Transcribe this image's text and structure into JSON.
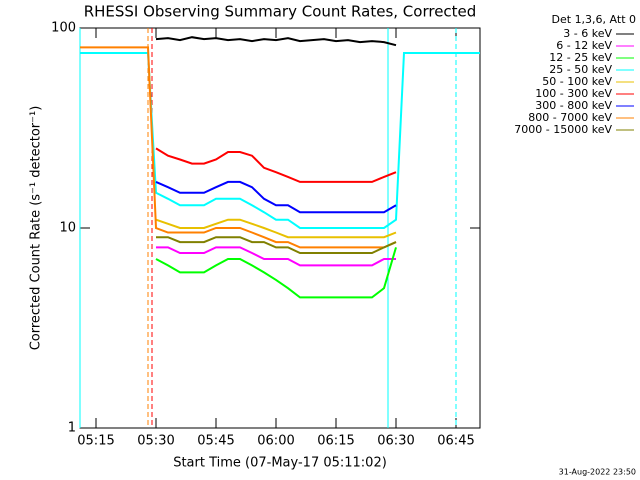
{
  "chart_data": {
    "type": "line",
    "title": "RHESSI Observing Summary Count Rates, Corrected",
    "xlabel": "Start Time (07-May-17 05:11:02)",
    "ylabel": "Corrected Count Rate (s⁻¹ detector⁻¹)",
    "legend_title": "Det 1,3,6, Att 0",
    "footer": "31-Aug-2022 23:50",
    "log_y": true,
    "ylim": [
      1,
      100
    ],
    "yticks": [
      1,
      10,
      100
    ],
    "xlim": [
      "05:11",
      "06:51"
    ],
    "xticks": [
      "05:15",
      "05:30",
      "05:45",
      "06:00",
      "06:15",
      "06:30",
      "06:45"
    ],
    "legend": "outside-right",
    "x": [
      "05:11",
      "05:28",
      "05:30",
      "05:33",
      "05:36",
      "05:39",
      "05:42",
      "05:45",
      "05:48",
      "05:51",
      "05:54",
      "05:57",
      "06:00",
      "06:03",
      "06:06",
      "06:09",
      "06:12",
      "06:15",
      "06:18",
      "06:21",
      "06:24",
      "06:27",
      "06:30",
      "06:32",
      "06:51"
    ],
    "series": [
      {
        "name": "3 - 6 keV",
        "color": "#000000",
        "values": [
          null,
          null,
          88,
          89,
          87,
          90,
          88,
          89,
          87,
          88,
          86,
          88,
          87,
          89,
          86,
          87,
          88,
          86,
          87,
          85,
          86,
          85,
          82,
          null,
          null
        ]
      },
      {
        "name": "6 - 12 keV",
        "color": "#ff00ff",
        "values": [
          null,
          null,
          8,
          8,
          7.5,
          7.5,
          7.5,
          8,
          8,
          8,
          7.5,
          7,
          7,
          7,
          6.5,
          6.5,
          6.5,
          6.5,
          6.5,
          6.5,
          6.5,
          7,
          7,
          null,
          null
        ]
      },
      {
        "name": "12 - 25 keV",
        "color": "#00ff00",
        "values": [
          null,
          null,
          7,
          6.5,
          6,
          6,
          6,
          6.5,
          7,
          7,
          6.5,
          6,
          5.5,
          5,
          4.5,
          4.5,
          4.5,
          4.5,
          4.5,
          4.5,
          4.5,
          5,
          8,
          null,
          null
        ]
      },
      {
        "name": "25 - 50 keV",
        "color": "#00ffff",
        "values": [
          75,
          75,
          15,
          14,
          13,
          13,
          13,
          14,
          14,
          14,
          13,
          12,
          11,
          11,
          10,
          10,
          10,
          10,
          10,
          10,
          10,
          10,
          11,
          75,
          75
        ]
      },
      {
        "name": "50 - 100 keV",
        "color": "#e8c000",
        "values": [
          null,
          null,
          11,
          10.5,
          10,
          10,
          10,
          10.5,
          11,
          11,
          10.5,
          10,
          9.5,
          9,
          9,
          9,
          9,
          9,
          9,
          9,
          9,
          9,
          9.5,
          null,
          null
        ]
      },
      {
        "name": "100 - 300 keV",
        "color": "#ff0000",
        "values": [
          null,
          null,
          25,
          23,
          22,
          21,
          21,
          22,
          24,
          24,
          23,
          20,
          19,
          18,
          17,
          17,
          17,
          17,
          17,
          17,
          17,
          18,
          19,
          null,
          null
        ]
      },
      {
        "name": "300 - 800 keV",
        "color": "#0000ff",
        "values": [
          null,
          null,
          17,
          16,
          15,
          15,
          15,
          16,
          17,
          17,
          16,
          14,
          13,
          13,
          12,
          12,
          12,
          12,
          12,
          12,
          12,
          12,
          13,
          null,
          null
        ]
      },
      {
        "name": "800 - 7000 keV",
        "color": "#ff8000",
        "values": [
          80,
          80,
          10,
          9.5,
          9.5,
          9.5,
          9.5,
          10,
          10,
          10,
          9.5,
          9,
          8.5,
          8.5,
          8,
          8,
          8,
          8,
          8,
          8,
          8,
          8,
          8.5,
          null,
          null
        ]
      },
      {
        "name": "7000 - 15000 keV",
        "color": "#808000",
        "values": [
          null,
          null,
          9,
          9,
          8.5,
          8.5,
          8.5,
          9,
          9,
          9,
          8.5,
          8.5,
          8,
          8,
          7.5,
          7.5,
          7.5,
          7.5,
          7.5,
          7.5,
          7.5,
          8,
          8.5,
          null,
          null
        ]
      }
    ],
    "markers": [
      {
        "x": "05:11",
        "color": "#00ffff",
        "dashed": false
      },
      {
        "x": "05:28",
        "color": "#ff8000",
        "dashed": true
      },
      {
        "x": "05:29",
        "color": "#ff0000",
        "dashed": true
      },
      {
        "x": "06:28",
        "color": "#00ffff",
        "dashed": false
      },
      {
        "x": "06:45",
        "color": "#00ffff",
        "dashed": true
      }
    ]
  }
}
